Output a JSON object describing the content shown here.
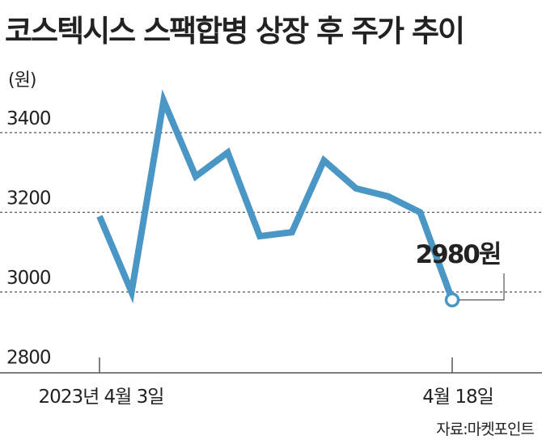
{
  "header": {
    "title": "코스텍시스 스팩합병 상장 후 주가 추이"
  },
  "source": "자료:마켓포인트",
  "chart_data": {
    "type": "line",
    "title": "코스텍시스 스팩합병 상장 후 주가 추이",
    "ylabel": "(원)",
    "xlabel": "",
    "ylim": [
      2800,
      3400
    ],
    "yticks": [
      3400,
      3200,
      3000,
      2800
    ],
    "grid": "horizontal dashed",
    "x_tick_labels": [
      {
        "index": 0,
        "label": "2023년 4월 3일"
      },
      {
        "index": 11,
        "label": "4월 18일"
      }
    ],
    "series": [
      {
        "values": [
          3190,
          3000,
          3480,
          3290,
          3350,
          3140,
          3150,
          3330,
          3260,
          3240,
          3200,
          2980
        ]
      }
    ],
    "last_point_label": "2980원",
    "colors": {
      "line": "#4a97c6",
      "text": "#222222",
      "grid": "#555555"
    }
  }
}
